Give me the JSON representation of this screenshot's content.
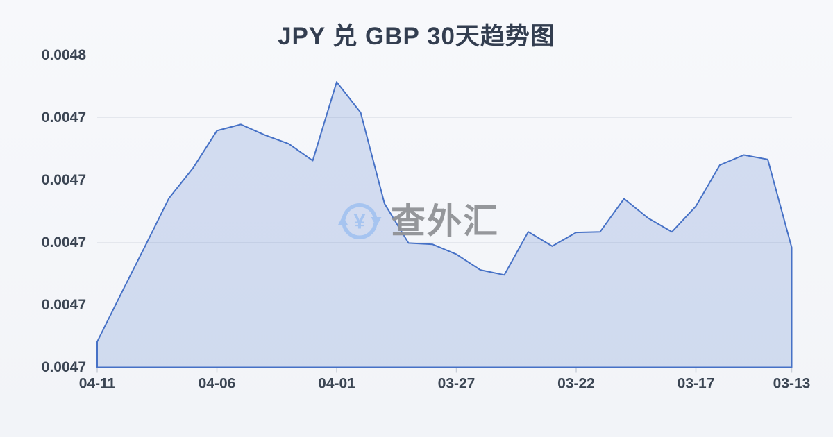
{
  "header": {
    "title": "JPY 兑 GBP 30天趋势图",
    "title_color": "#333e50"
  },
  "watermark": {
    "text": "查外汇",
    "icon": "currency-exchange-icon",
    "icon_symbol": "¥",
    "icon_color": "#a6c4f0",
    "text_color": "#909296"
  },
  "chart_data": {
    "type": "area",
    "title": "JPY 兑 GBP 30天趋势图",
    "x": [
      "04-11",
      "04-10",
      "04-09",
      "04-08",
      "04-07",
      "04-06",
      "04-05",
      "04-04",
      "04-03",
      "04-02",
      "04-01",
      "03-31",
      "03-30",
      "03-29",
      "03-28",
      "03-27",
      "03-26",
      "03-25",
      "03-24",
      "03-23",
      "03-22",
      "03-21",
      "03-20",
      "03-19",
      "03-18",
      "03-17",
      "03-16",
      "03-15",
      "03-14",
      "03-13"
    ],
    "values": [
      0.0047041,
      0.0047118,
      0.0047194,
      0.0047271,
      0.0047319,
      0.0047379,
      0.0047389,
      0.0047372,
      0.0047358,
      0.0047331,
      0.0047457,
      0.0047408,
      0.0047262,
      0.0047199,
      0.0047197,
      0.0047181,
      0.0047156,
      0.0047148,
      0.0047217,
      0.0047194,
      0.0047216,
      0.0047217,
      0.004727,
      0.0047239,
      0.0047217,
      0.0047258,
      0.0047324,
      0.004734,
      0.0047333,
      0.0047192
    ],
    "x_tick_labels": [
      "04-11",
      "04-06",
      "04-01",
      "03-27",
      "03-22",
      "03-17",
      "03-13"
    ],
    "x_tick_indices": [
      0,
      5,
      10,
      15,
      20,
      25,
      29
    ],
    "y_tick_labels": [
      "0.0048",
      "0.0047",
      "0.0047",
      "0.0047",
      "0.0047",
      "0.0047"
    ],
    "y_tick_values": [
      0.00475,
      0.00474,
      0.00473,
      0.00472,
      0.00471,
      0.0047
    ],
    "y_tick_step": 1e-05,
    "ylim": [
      0.0047,
      0.00475
    ],
    "grid": true,
    "legend": false,
    "xlabel": "",
    "ylabel": "",
    "line_color": "#4671c6",
    "fill_color": "rgba(70,113,198,0.20)",
    "grid_color": "#e4e7ed",
    "tick_color": "#c9ced8",
    "axis_label_color": "#3b4553"
  }
}
